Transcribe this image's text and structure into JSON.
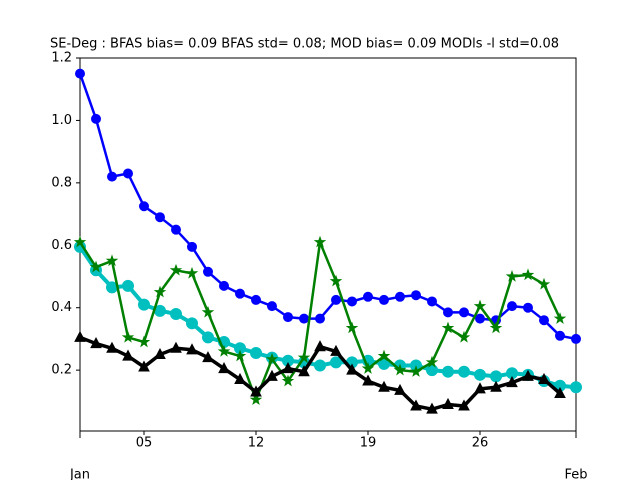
{
  "chart_data": {
    "type": "line",
    "title": "SE-Deg   : BFAS bias= 0.09 BFAS std= 0.08; MOD bias= 0.09 MODls -l std=0.08",
    "x": [
      1,
      2,
      3,
      4,
      5,
      6,
      7,
      8,
      9,
      10,
      11,
      12,
      13,
      14,
      15,
      16,
      17,
      18,
      19,
      20,
      21,
      22,
      23,
      24,
      25,
      26,
      27,
      28,
      29,
      30,
      31,
      32
    ],
    "xlim": [
      1,
      32
    ],
    "xticks": [
      {
        "value": 5,
        "label": "05"
      },
      12,
      19,
      26
    ],
    "month_ticks": [
      {
        "value": 1,
        "label": "Jan"
      },
      {
        "value": 32,
        "label": "Feb"
      }
    ],
    "ylim": [
      0.005,
      1.2
    ],
    "yticks": [
      0.2,
      0.4,
      0.6,
      0.8,
      {
        "value": 1.0,
        "label": "1.0"
      },
      1.2
    ],
    "grid": false,
    "series": [
      {
        "color": "#0000ff",
        "marker": "circle",
        "values": [
          1.15,
          1.005,
          0.82,
          0.83,
          0.725,
          0.69,
          0.65,
          0.595,
          0.515,
          0.47,
          0.445,
          0.425,
          0.405,
          0.37,
          0.365,
          0.365,
          0.425,
          0.42,
          0.435,
          0.425,
          0.435,
          0.44,
          0.42,
          0.385,
          0.385,
          0.365,
          0.36,
          0.405,
          0.4,
          0.36,
          0.31,
          0.3
        ]
      },
      {
        "color": "#00bfbf",
        "marker": "circle-large",
        "values": [
          0.595,
          0.52,
          0.465,
          0.47,
          0.41,
          0.39,
          0.38,
          0.35,
          0.305,
          0.29,
          0.27,
          0.255,
          0.24,
          0.23,
          0.225,
          0.215,
          0.225,
          0.225,
          0.23,
          0.22,
          0.215,
          0.215,
          0.2,
          0.195,
          0.195,
          0.185,
          0.18,
          0.19,
          0.185,
          0.165,
          0.15,
          0.145
        ]
      },
      {
        "color": "#008000",
        "marker": "star",
        "values": [
          0.61,
          0.53,
          0.55,
          0.305,
          0.29,
          0.45,
          0.52,
          0.51,
          0.385,
          0.26,
          0.245,
          0.105,
          0.235,
          0.165,
          0.24,
          0.61,
          0.485,
          0.335,
          0.205,
          0.245,
          0.2,
          0.195,
          0.225,
          0.335,
          0.305,
          0.405,
          0.335,
          0.5,
          0.505,
          0.475,
          0.365,
          null
        ]
      },
      {
        "color": "#000000",
        "marker": "triangle",
        "values": [
          0.305,
          0.285,
          0.27,
          0.245,
          0.21,
          0.25,
          0.27,
          0.265,
          0.24,
          0.205,
          0.17,
          0.13,
          0.18,
          0.205,
          0.195,
          0.275,
          0.26,
          0.2,
          0.165,
          0.145,
          0.135,
          0.085,
          0.075,
          0.09,
          0.085,
          0.14,
          0.145,
          0.16,
          0.18,
          0.17,
          0.125,
          null
        ]
      }
    ]
  }
}
